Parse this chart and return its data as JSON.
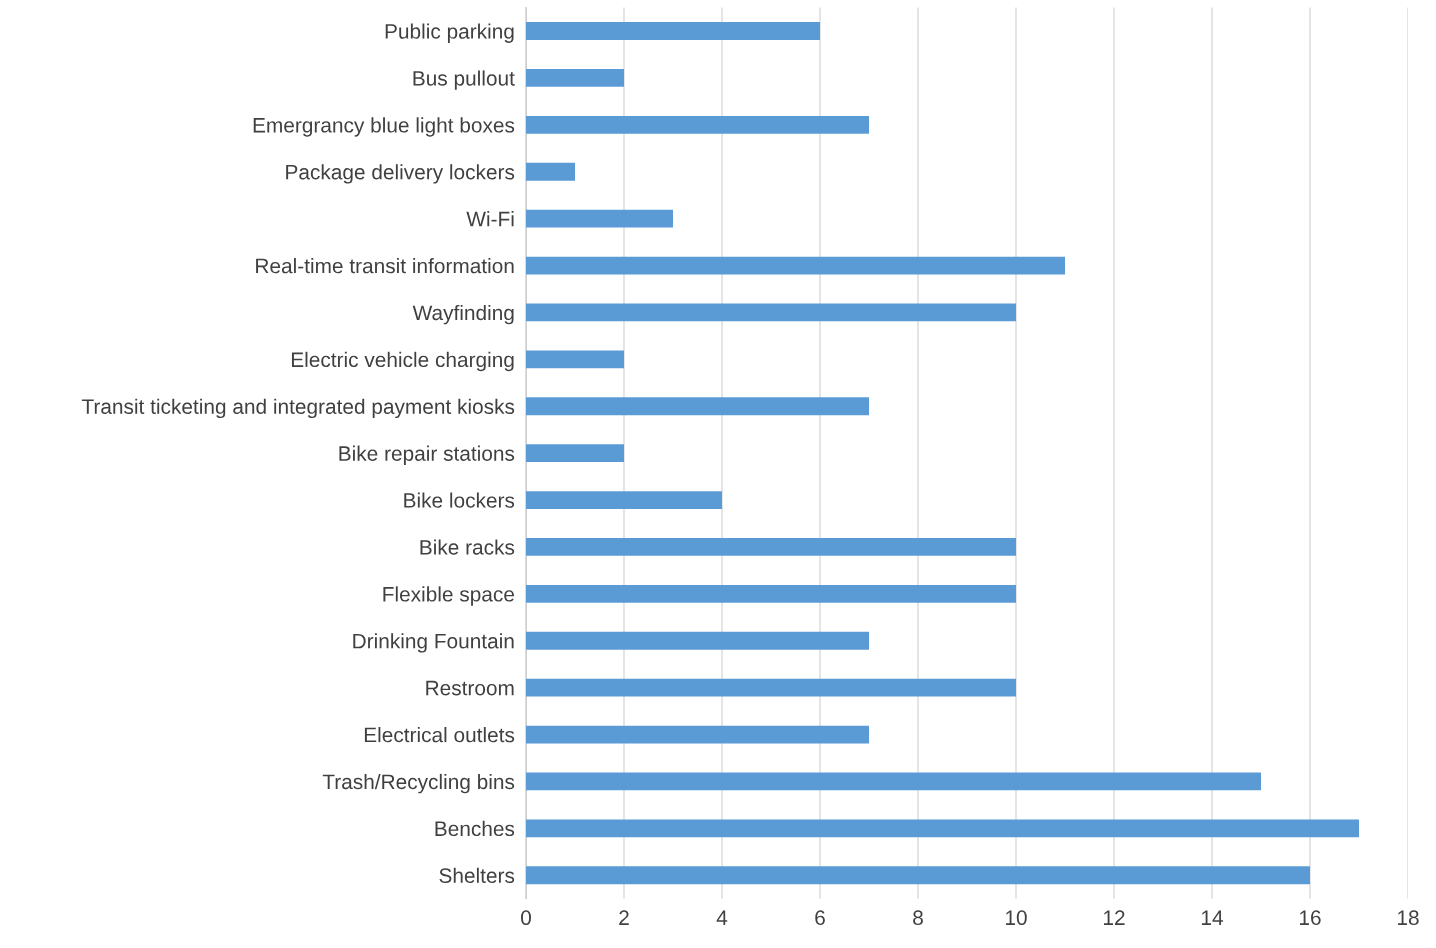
{
  "chart_data": {
    "type": "bar",
    "orientation": "horizontal",
    "categories": [
      "Public parking",
      "Bus pullout",
      "Emergrancy blue light boxes",
      "Package delivery lockers",
      "Wi-Fi",
      "Real-time transit information",
      "Wayfinding",
      "Electric vehicle charging",
      "Transit ticketing and integrated payment kiosks",
      "Bike repair stations",
      "Bike lockers",
      "Bike racks",
      "Flexible space",
      "Drinking Fountain",
      "Restroom",
      "Electrical outlets",
      "Trash/Recycling bins",
      "Benches",
      "Shelters"
    ],
    "values": [
      6,
      2,
      7,
      1,
      3,
      11,
      10,
      2,
      7,
      2,
      4,
      10,
      10,
      7,
      10,
      7,
      15,
      17,
      16
    ],
    "color": "#5b9bd5",
    "xlim": [
      0,
      18
    ],
    "xticks": [
      0,
      2,
      4,
      6,
      8,
      10,
      12,
      14,
      16,
      18
    ],
    "grid": "x"
  }
}
